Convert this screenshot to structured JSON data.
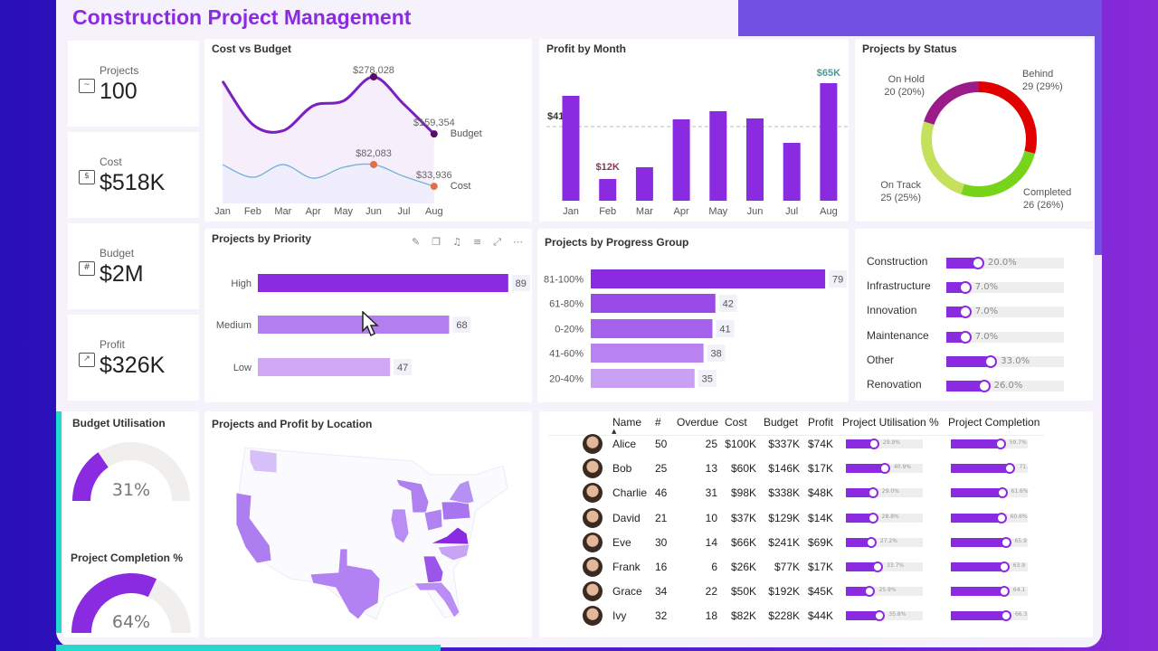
{
  "title": "Construction Project Management",
  "kpis": [
    {
      "label": "Projects",
      "value": "100",
      "icon": "blueprint-chart-icon"
    },
    {
      "label": "Cost",
      "value": "$518K",
      "icon": "invoice-icon"
    },
    {
      "label": "Budget",
      "value": "$2M",
      "icon": "calculator-icon"
    },
    {
      "label": "Profit",
      "value": "$326K",
      "icon": "profit-growth-icon"
    }
  ],
  "colors": {
    "accent": "#8a2be2",
    "behind": "#e00000",
    "completed": "#77d41a",
    "on_track": "#c5e05a",
    "on_hold": "#9b1b8a",
    "cost_line": "#6fb3d8",
    "cost_marker": "#e07048",
    "budget_marker": "#5a0a6a"
  },
  "chart_data": [
    {
      "id": "cost_vs_budget",
      "type": "line",
      "title": "Cost vs Budget",
      "categories": [
        "Jan",
        "Feb",
        "Mar",
        "Apr",
        "May",
        "Jun",
        "Jul",
        "Aug"
      ],
      "series": [
        {
          "name": "Budget",
          "values": [
            269000,
            179000,
            166000,
            218000,
            228000,
            278028,
            221000,
            159354
          ]
        },
        {
          "name": "Cost",
          "values": [
            82000,
            54000,
            82000,
            52000,
            76000,
            82083,
            56000,
            33936
          ]
        }
      ],
      "data_labels": [
        "$278,028",
        "$159,354",
        "$82,083",
        "$33,936"
      ]
    },
    {
      "id": "profit_by_month",
      "type": "bar",
      "title": "Profit by Month",
      "categories": [
        "Jan",
        "Feb",
        "Mar",
        "Apr",
        "May",
        "Jun",
        "Jul",
        "Aug"
      ],
      "values": [
        58,
        12,
        18.5,
        45,
        49.5,
        45.5,
        32,
        65
      ],
      "unit": "K",
      "average_line": {
        "value": 41,
        "label": "$41K"
      },
      "min_label": "$12K",
      "max_label": "$65K"
    },
    {
      "id": "projects_by_status",
      "type": "pie",
      "title": "Projects by Status",
      "slices": [
        {
          "name": "Behind",
          "value": 29,
          "label": "29 (29%)"
        },
        {
          "name": "Completed",
          "value": 26,
          "label": "26 (26%)"
        },
        {
          "name": "On Track",
          "value": 25,
          "label": "25 (25%)"
        },
        {
          "name": "On Hold",
          "value": 20,
          "label": "20 (20%)"
        }
      ]
    },
    {
      "id": "projects_by_priority",
      "type": "bar",
      "orientation": "horizontal",
      "title": "Projects by Priority",
      "categories": [
        "High",
        "Medium",
        "Low"
      ],
      "values": [
        89,
        68,
        47
      ]
    },
    {
      "id": "projects_by_progress_group",
      "type": "bar",
      "orientation": "horizontal",
      "title": "Projects by Progress Group",
      "categories": [
        "81-100%",
        "61-80%",
        "0-20%",
        "41-60%",
        "20-40%"
      ],
      "values": [
        79,
        42,
        41,
        38,
        35
      ]
    }
  ],
  "visual_toolbar": [
    "pin-icon",
    "copy-icon",
    "bell-icon",
    "filter-icon",
    "expand-icon",
    "more-icon"
  ],
  "categories": [
    {
      "name": "Construction",
      "value": 20.0,
      "label": "20.0%"
    },
    {
      "name": "Infrastructure",
      "value": 7.0,
      "label": "7.0%"
    },
    {
      "name": "Innovation",
      "value": 7.0,
      "label": "7.0%"
    },
    {
      "name": "Maintenance",
      "value": 7.0,
      "label": "7.0%"
    },
    {
      "name": "Other",
      "value": 33.0,
      "label": "33.0%"
    },
    {
      "name": "Renovation",
      "value": 26.0,
      "label": "26.0%"
    }
  ],
  "gauges": [
    {
      "title": "Budget Utilisation",
      "value": 31,
      "label": "31%"
    },
    {
      "title": "Project Completion %",
      "value": 64,
      "label": "64%"
    }
  ],
  "map": {
    "title": "Projects and Profit by Location"
  },
  "table": {
    "headers": [
      "Name",
      "#",
      "Overdue",
      "Cost",
      "Budget",
      "Profit",
      "Project Utilisation %",
      "Project Completion"
    ],
    "sort": "Name ascending",
    "rows": [
      {
        "name": "Alice",
        "count": "50",
        "overdue": "25",
        "cost": "$100K",
        "budget": "$337K",
        "profit": "$74K",
        "util": 29.9,
        "util_label": "29.9%",
        "comp": 59.7,
        "comp_label": "59.7%"
      },
      {
        "name": "Bob",
        "count": "25",
        "overdue": "13",
        "cost": "$60K",
        "budget": "$146K",
        "profit": "$17K",
        "util": 40.9,
        "util_label": "40.9%",
        "comp": 71,
        "comp_label": "71."
      },
      {
        "name": "Charlie",
        "count": "46",
        "overdue": "31",
        "cost": "$98K",
        "budget": "$338K",
        "profit": "$48K",
        "util": 29.0,
        "util_label": "29.0%",
        "comp": 61.6,
        "comp_label": "61.6%"
      },
      {
        "name": "David",
        "count": "21",
        "overdue": "10",
        "cost": "$37K",
        "budget": "$129K",
        "profit": "$14K",
        "util": 28.8,
        "util_label": "28.8%",
        "comp": 60.6,
        "comp_label": "60.6%"
      },
      {
        "name": "Eve",
        "count": "30",
        "overdue": "14",
        "cost": "$66K",
        "budget": "$241K",
        "profit": "$69K",
        "util": 27.2,
        "util_label": "27.2%",
        "comp": 65.9,
        "comp_label": "65.9"
      },
      {
        "name": "Frank",
        "count": "16",
        "overdue": "6",
        "cost": "$26K",
        "budget": "$77K",
        "profit": "$17K",
        "util": 33.7,
        "util_label": "33.7%",
        "comp": 63.9,
        "comp_label": "63.9"
      },
      {
        "name": "Grace",
        "count": "34",
        "overdue": "22",
        "cost": "$50K",
        "budget": "$192K",
        "profit": "$45K",
        "util": 25.9,
        "util_label": "25.9%",
        "comp": 64.1,
        "comp_label": "64.1"
      },
      {
        "name": "Ivy",
        "count": "32",
        "overdue": "18",
        "cost": "$82K",
        "budget": "$228K",
        "profit": "$44K",
        "util": 35.8,
        "util_label": "35.8%",
        "comp": 66.3,
        "comp_label": "66.3"
      }
    ]
  }
}
